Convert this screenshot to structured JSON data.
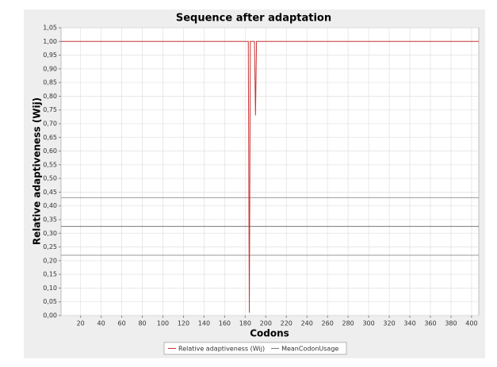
{
  "chart_data": {
    "type": "line",
    "title": "Sequence after adaptation",
    "x_label": "Codons",
    "y_label": "Relative adaptiveness (Wij)",
    "xlim": [
      1,
      407
    ],
    "ylim": [
      0,
      1.05
    ],
    "xticks": [
      20,
      40,
      60,
      80,
      100,
      120,
      140,
      160,
      180,
      200,
      220,
      240,
      260,
      280,
      300,
      320,
      340,
      360,
      380,
      400
    ],
    "yticks": [
      {
        "value": 0,
        "label": "0,00"
      },
      {
        "value": 0.05,
        "label": "0,05"
      },
      {
        "value": 0.1,
        "label": "0,10"
      },
      {
        "value": 0.15,
        "label": "0,15"
      },
      {
        "value": 0.2,
        "label": "0,20"
      },
      {
        "value": 0.25,
        "label": "0,25"
      },
      {
        "value": 0.3,
        "label": "0,30"
      },
      {
        "value": 0.35,
        "label": "0,35"
      },
      {
        "value": 0.4,
        "label": "0,40"
      },
      {
        "value": 0.45,
        "label": "0,45"
      },
      {
        "value": 0.5,
        "label": "0,50"
      },
      {
        "value": 0.55,
        "label": "0,55"
      },
      {
        "value": 0.6,
        "label": "0,60"
      },
      {
        "value": 0.65,
        "label": "0,65"
      },
      {
        "value": 0.7,
        "label": "0,70"
      },
      {
        "value": 0.75,
        "label": "0,75"
      },
      {
        "value": 0.8,
        "label": "0,80"
      },
      {
        "value": 0.85,
        "label": "0,85"
      },
      {
        "value": 0.9,
        "label": "0,90"
      },
      {
        "value": 0.95,
        "label": "0,95"
      },
      {
        "value": 1,
        "label": "1,00"
      },
      {
        "value": 1.05,
        "label": "1,05"
      }
    ],
    "grid": true,
    "series": [
      {
        "name": "Relative adaptiveness (Wij)",
        "color": "#cc3333",
        "x": [
          1,
          183,
          184,
          185,
          186,
          189,
          190,
          191,
          407
        ],
        "values": [
          1,
          1,
          0.01,
          1,
          1,
          1,
          0.73,
          1,
          1
        ]
      },
      {
        "name": "MeanCodonUsage",
        "color": "#777777",
        "x": [
          1,
          407
        ],
        "values": [
          0.325,
          0.325
        ]
      }
    ],
    "markers": [
      0.43,
      0.22
    ],
    "legend": "bottom"
  }
}
